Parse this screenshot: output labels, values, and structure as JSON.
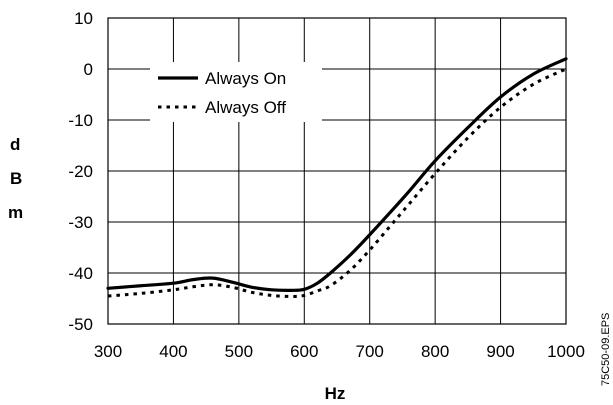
{
  "chart_data": {
    "type": "line",
    "xlabel": "Hz",
    "ylabel": "dBm",
    "ylabel_letters": [
      "d",
      "B",
      "m"
    ],
    "xlim": [
      300,
      1000
    ],
    "ylim": [
      -50,
      10
    ],
    "x_ticks": [
      300,
      400,
      500,
      600,
      700,
      800,
      900,
      1000
    ],
    "y_ticks": [
      10,
      0,
      -10,
      -20,
      -30,
      -40,
      -50
    ],
    "grid": true,
    "legend_position": "top-left",
    "series": [
      {
        "name": "Always On",
        "style": "solid",
        "color": "#000000",
        "x": [
          300,
          350,
          400,
          430,
          460,
          490,
          520,
          550,
          580,
          600,
          620,
          640,
          670,
          700,
          730,
          760,
          800,
          850,
          900,
          950,
          1000
        ],
        "y": [
          -43,
          -42.5,
          -42,
          -41.3,
          -41,
          -41.8,
          -42.8,
          -43.3,
          -43.4,
          -43.2,
          -42,
          -40,
          -36.5,
          -32.5,
          -28.3,
          -24,
          -18,
          -11.5,
          -5.5,
          -1,
          2
        ]
      },
      {
        "name": "Always Off",
        "style": "dotted",
        "color": "#000000",
        "x": [
          300,
          350,
          400,
          430,
          460,
          490,
          520,
          550,
          580,
          600,
          620,
          640,
          670,
          700,
          730,
          760,
          800,
          850,
          900,
          950,
          1000
        ],
        "y": [
          -44.5,
          -44,
          -43.3,
          -42.7,
          -42.3,
          -42.8,
          -43.8,
          -44.4,
          -44.6,
          -44.4,
          -43.5,
          -42.5,
          -39.5,
          -35.5,
          -31,
          -26.5,
          -20.5,
          -13.5,
          -7.5,
          -3,
          0
        ]
      }
    ]
  },
  "figure_code": "75C50-09.EPS"
}
